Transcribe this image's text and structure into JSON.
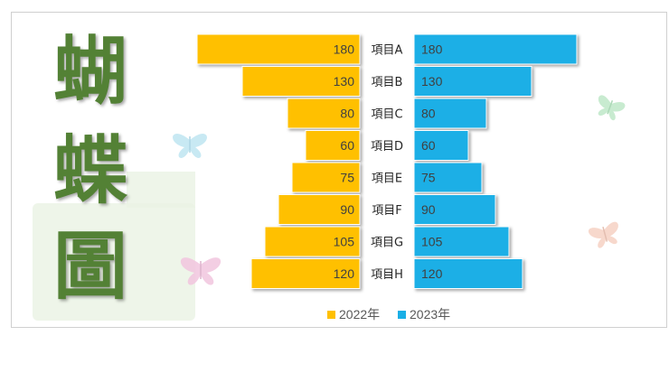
{
  "side_title": [
    "蝴",
    "蝶",
    "圖"
  ],
  "chart_data": {
    "type": "bar",
    "orientation": "horizontal-butterfly",
    "categories": [
      "項目A",
      "項目B",
      "項目C",
      "項目D",
      "項目E",
      "項目F",
      "項目G",
      "項目H"
    ],
    "series": [
      {
        "name": "2022年",
        "values": [
          180,
          130,
          80,
          60,
          75,
          90,
          105,
          120
        ],
        "color": "#FFC000",
        "side": "left"
      },
      {
        "name": "2023年",
        "values": [
          180,
          130,
          80,
          60,
          75,
          90,
          105,
          120
        ],
        "color": "#1AAFE6",
        "side": "right"
      }
    ],
    "xlim": [
      0,
      180
    ],
    "legend_position": "bottom",
    "grid": false,
    "data_labels": true
  },
  "colors": {
    "title": "#538135",
    "series_2022": "#FFC000",
    "series_2023": "#1AAFE6",
    "butterfly_blue": "#bfe6f2",
    "butterfly_green": "#bfe8c8",
    "butterfly_pink": "#f2c6df",
    "butterfly_peach": "#f6d2c4",
    "watermark": "#eaf2e4"
  }
}
